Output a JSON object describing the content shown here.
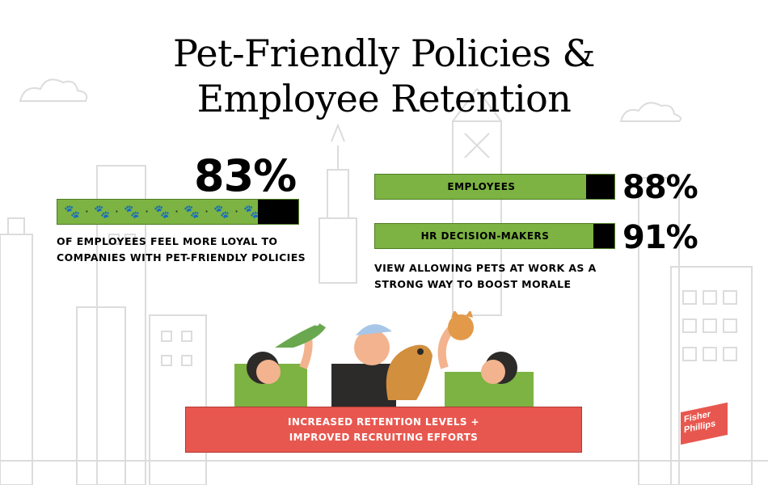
{
  "title": {
    "line1": "Pet-Friendly Policies &",
    "line2": "Employee Retention"
  },
  "left_stat": {
    "value": "83%",
    "level": 0.83,
    "caption_line1": "OF EMPLOYEES FEEL MORE LOYAL TO",
    "caption_line2": "COMPANIES WITH PET-FRIENDLY POLICIES",
    "bar_icon": "paw-print-icon"
  },
  "right_stats": {
    "bars": [
      {
        "label": "EMPLOYEES",
        "value": "88%",
        "level": 0.88
      },
      {
        "label": "HR DECISION-MAKERS",
        "value": "91%",
        "level": 0.91
      }
    ],
    "caption_line1": "VIEW ALLOWING PETS AT WORK AS A",
    "caption_line2": "STRONG WAY TO BOOST MORALE"
  },
  "banner": {
    "line1": "INCREASED RETENTION LEVELS +",
    "line2": "IMPROVED RECRUITING EFFORTS"
  },
  "logo": {
    "line1": "Fisher",
    "line2": "Phillips"
  },
  "colors": {
    "green": "#7cb342",
    "black": "#000000",
    "coral": "#e8574f",
    "sketch": "#d9d9d9"
  }
}
